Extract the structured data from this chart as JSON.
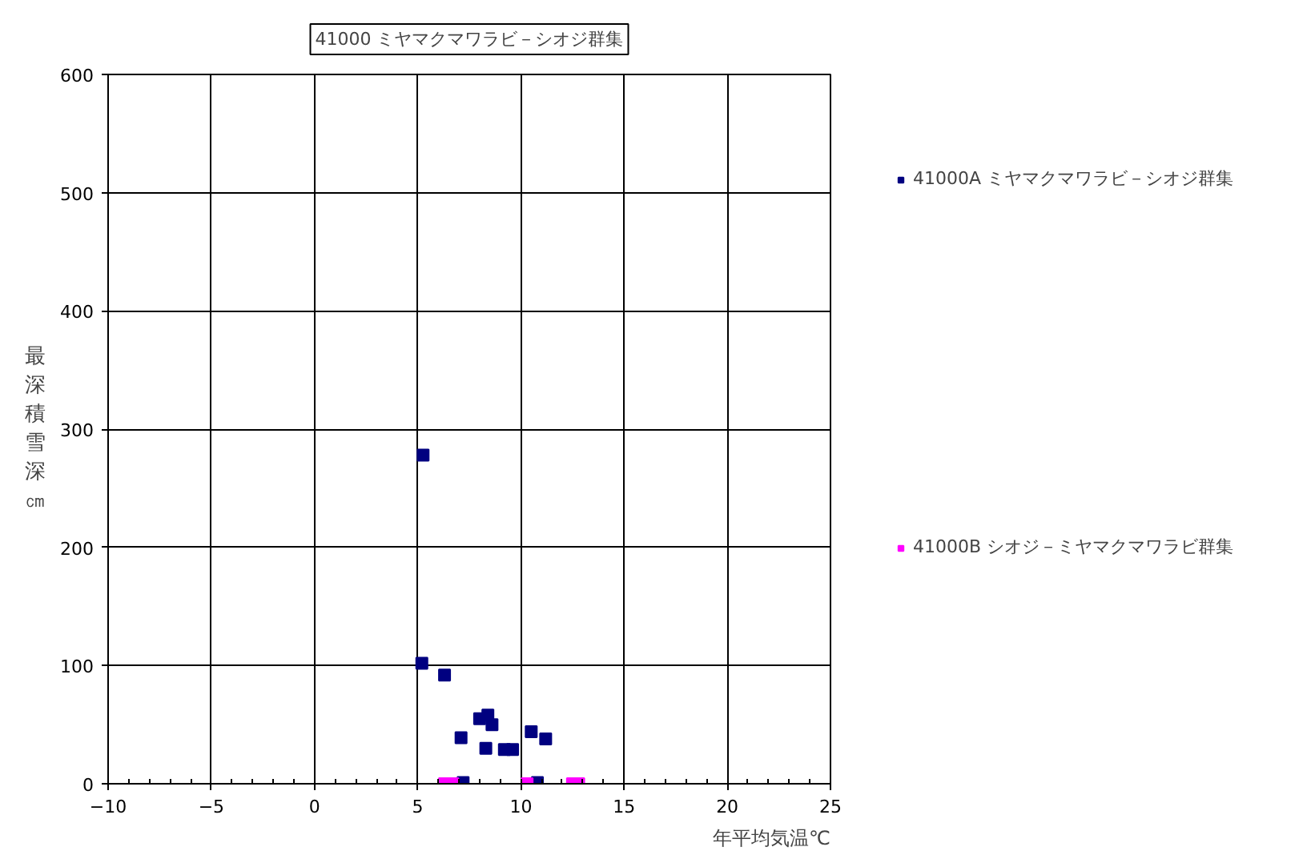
{
  "chart_data": {
    "type": "scatter",
    "title": "41000 ミヤマクマワラビ－シオジ群集",
    "xlabel": "年平均気温℃",
    "ylabel": "最深積雪深㎝",
    "xlim": [
      -10,
      25
    ],
    "xticks": [
      -10,
      -5,
      0,
      5,
      10,
      15,
      20,
      25
    ],
    "ylim": [
      0,
      600
    ],
    "yticks": [
      0,
      100,
      200,
      300,
      400,
      500,
      600
    ],
    "grid": true,
    "legend": "right",
    "marker": "square",
    "series": [
      {
        "name": "41000A ミヤマクマワラビ－シオジ群集",
        "color": "#000080",
        "x": [
          5.26,
          5.2,
          6.3,
          7.1,
          8.0,
          8.4,
          8.6,
          8.3,
          9.2,
          9.6,
          10.5,
          11.2,
          7.2,
          10.8
        ],
        "values": [
          278,
          102,
          92,
          39,
          55,
          58,
          50,
          30,
          29,
          29,
          44,
          38,
          1,
          1
        ]
      },
      {
        "name": "41000B シオジ－ミヤマクマワラビ群集",
        "color": "#ff00ff",
        "x": [
          6.3,
          6.7,
          10.3,
          12.5,
          12.8
        ],
        "values": [
          0,
          0,
          0,
          0,
          0
        ]
      }
    ]
  }
}
